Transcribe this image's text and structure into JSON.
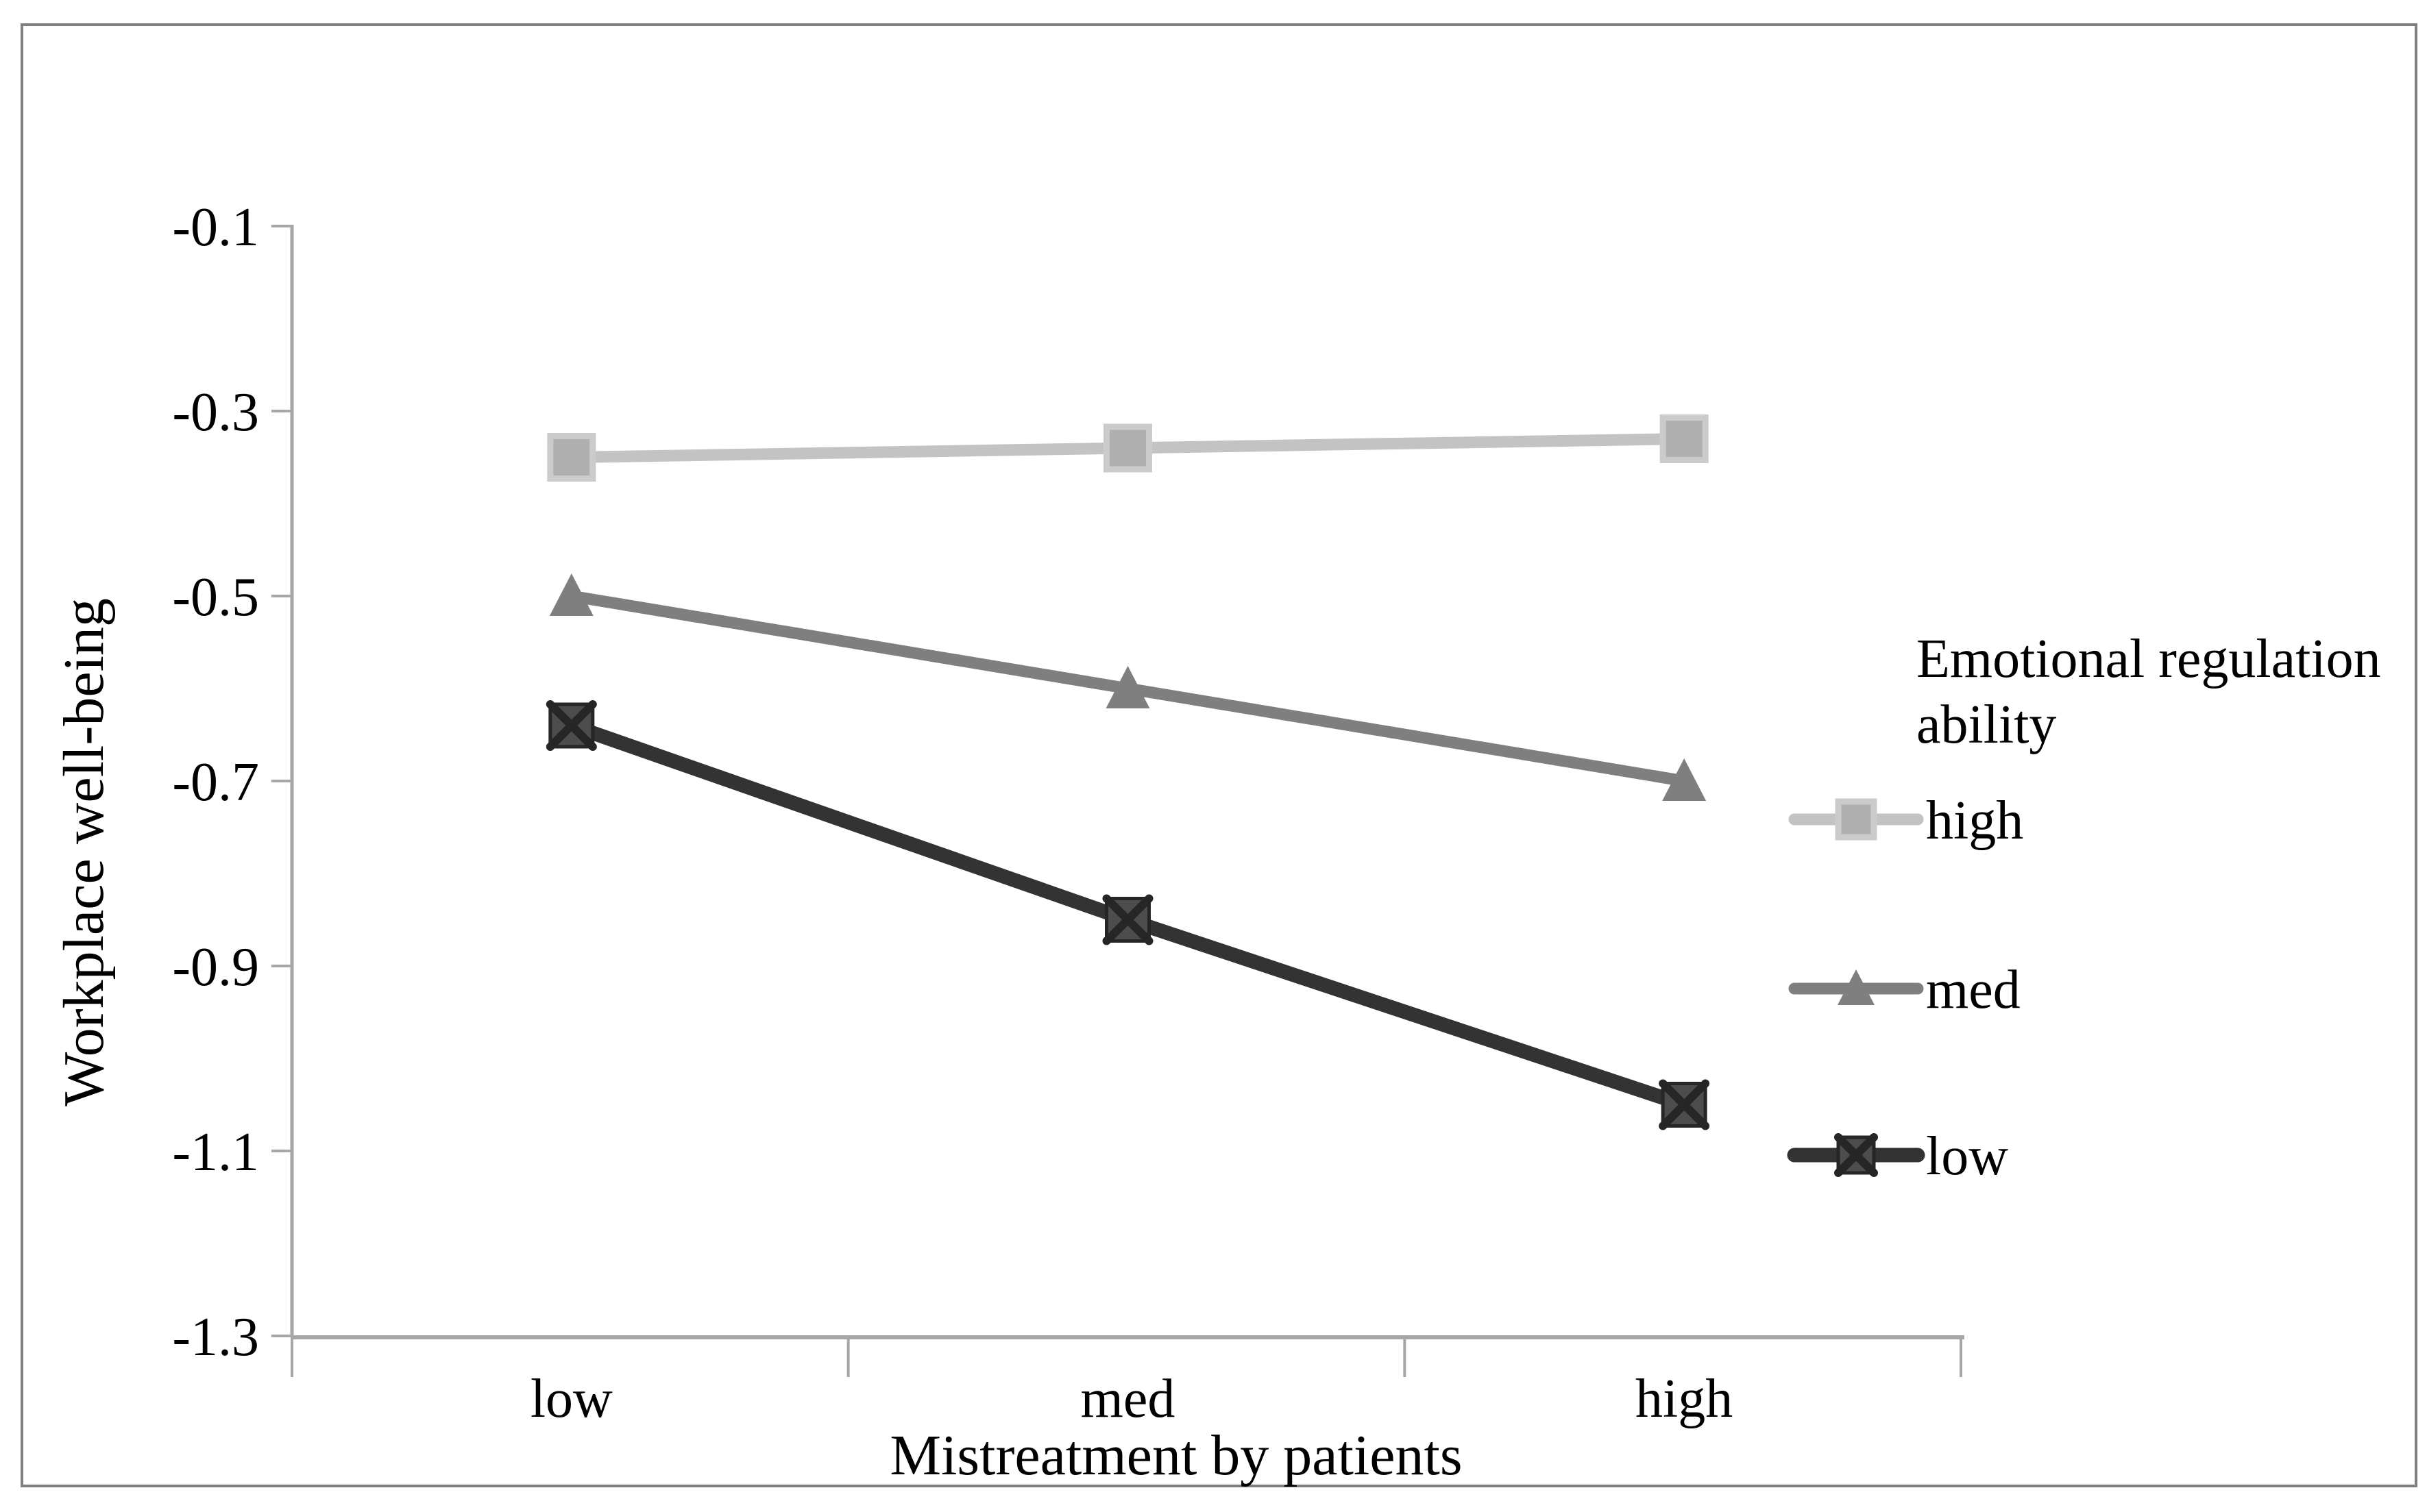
{
  "figure": {
    "background": "#ffffff",
    "border_color": "#808080",
    "axis_color": "#a6a6a6",
    "text_color": "#000000"
  },
  "chart_data": {
    "type": "line",
    "title": "",
    "categories": [
      "low",
      "med",
      "high"
    ],
    "series": [
      {
        "name": "high",
        "values": [
          -0.35,
          -0.34,
          -0.33
        ],
        "color": "#c3c3c3",
        "marker": "square",
        "marker_fill": "#b0b0b0",
        "marker_border": "#cbcbcb",
        "line_width": 17
      },
      {
        "name": "med",
        "values": [
          -0.5,
          -0.6,
          -0.7
        ],
        "color": "#7f7f7f",
        "marker": "triangle",
        "marker_fill": "#7f7f7f",
        "marker_border": "#7f7f7f",
        "line_width": 17
      },
      {
        "name": "low",
        "values": [
          -0.64,
          -0.85,
          -1.05
        ],
        "color": "#333333",
        "marker": "x-square",
        "marker_fill": "#4d4d4d",
        "marker_border": "#262626",
        "line_width": 21
      }
    ],
    "xlabel": "Mistreatment by patients",
    "ylabel": "Workplace well-being",
    "ylim": [
      -1.3,
      -0.1
    ],
    "ytick_step": 0.2,
    "yticks": [
      "-0.1",
      "-0.3",
      "-0.5",
      "-0.7",
      "-0.9",
      "-1.1",
      "-1.3"
    ],
    "legend_title": [
      "Emotional regulation",
      "ability"
    ],
    "legend_position": "right",
    "grid": false
  }
}
